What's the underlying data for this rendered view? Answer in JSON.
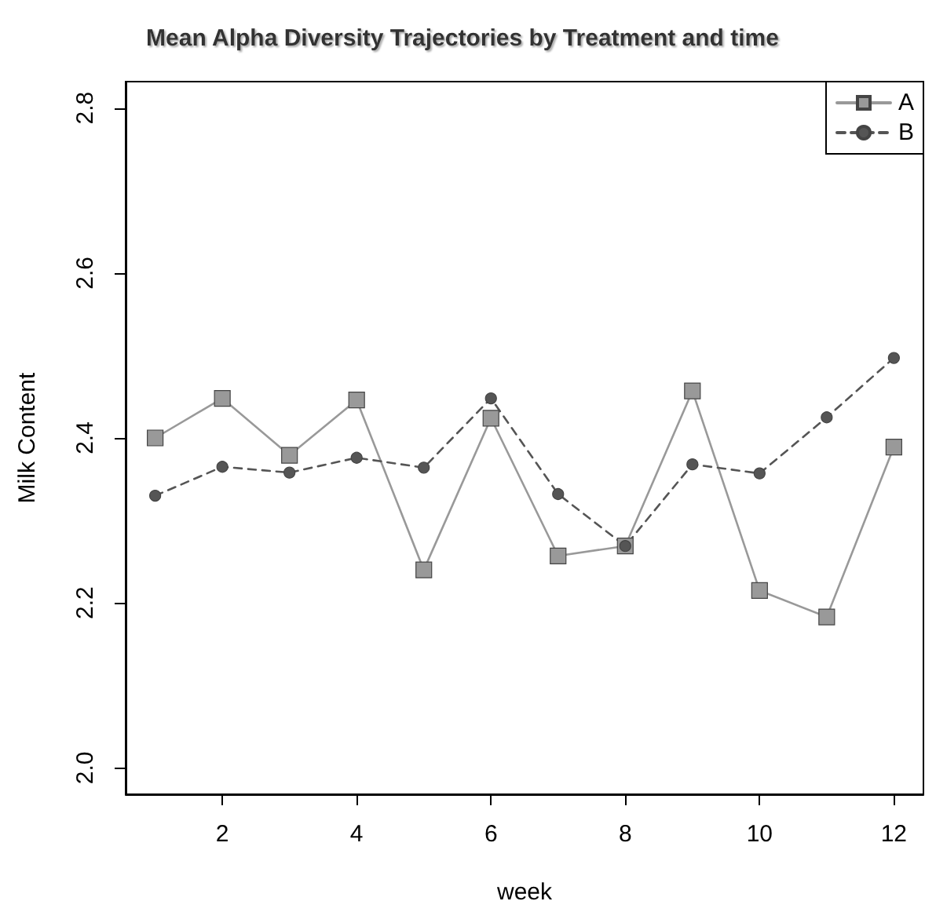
{
  "chart_data": {
    "type": "line",
    "title": "Mean Alpha Diversity Trajectories by Treatment and time",
    "xlabel": "week",
    "ylabel": "Milk Content",
    "x": [
      1,
      2,
      3,
      4,
      5,
      6,
      7,
      8,
      9,
      10,
      11,
      12
    ],
    "series": [
      {
        "name": "A",
        "color": "#999999",
        "marker": "square",
        "line_style": "solid",
        "values": [
          2.4,
          2.448,
          2.379,
          2.446,
          2.24,
          2.424,
          2.257,
          2.269,
          2.457,
          2.215,
          2.183,
          2.389
        ]
      },
      {
        "name": "B",
        "color": "#555555",
        "marker": "circle",
        "line_style": "dashed",
        "values": [
          2.33,
          2.365,
          2.358,
          2.376,
          2.364,
          2.448,
          2.332,
          2.269,
          2.368,
          2.357,
          2.425,
          2.497
        ]
      }
    ],
    "xlim": [
      0.56,
      12.44
    ],
    "xticks": [
      2,
      4,
      6,
      8,
      10,
      12
    ],
    "ylim": [
      1.968,
      2.832
    ],
    "yticks": [
      {
        "value": 2,
        "label": "2.0"
      },
      2.2,
      2.4,
      2.6,
      2.8
    ],
    "grid": false,
    "legend": "top right"
  }
}
